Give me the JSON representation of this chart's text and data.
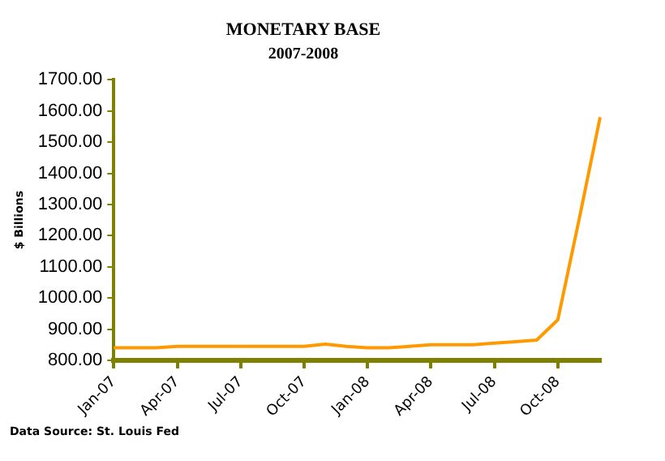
{
  "chart_data": {
    "type": "line",
    "title": "MONETARY BASE",
    "subtitle": "2007-2008",
    "ylabel": "$ Billions",
    "categories": [
      "Jan-07",
      null,
      null,
      "Apr-07",
      null,
      null,
      "Jul-07",
      null,
      null,
      "Oct-07",
      null,
      null,
      "Jan-08",
      null,
      null,
      "Apr-08",
      null,
      null,
      "Jul-08",
      null,
      null,
      "Oct-08",
      null,
      null
    ],
    "series": [
      {
        "color": "#ff9900",
        "values": [
          840,
          840,
          840,
          845,
          845,
          845,
          845,
          845,
          845,
          845,
          852,
          845,
          840,
          840,
          845,
          850,
          850,
          850,
          855,
          860,
          865,
          930,
          1250,
          1580
        ]
      }
    ],
    "ylim": [
      800,
      1700
    ],
    "yticks": [
      {
        "value": 800,
        "label": "800.00"
      },
      {
        "value": 900,
        "label": "900.00"
      },
      {
        "value": 1000,
        "label": "1000.00"
      },
      {
        "value": 1100,
        "label": "1100.00"
      },
      {
        "value": 1200,
        "label": "1200.00"
      },
      {
        "value": 1300,
        "label": "1300.00"
      },
      {
        "value": 1400,
        "label": "1400.00"
      },
      {
        "value": 1500,
        "label": "1500.00"
      },
      {
        "value": 1600,
        "label": "1600.00"
      },
      {
        "value": 1700,
        "label": "1700.00"
      }
    ],
    "annotations": [
      "Data Source: St. Louis Fed"
    ],
    "grid": false,
    "legend": false,
    "marker": "none",
    "line_style": "solid"
  }
}
